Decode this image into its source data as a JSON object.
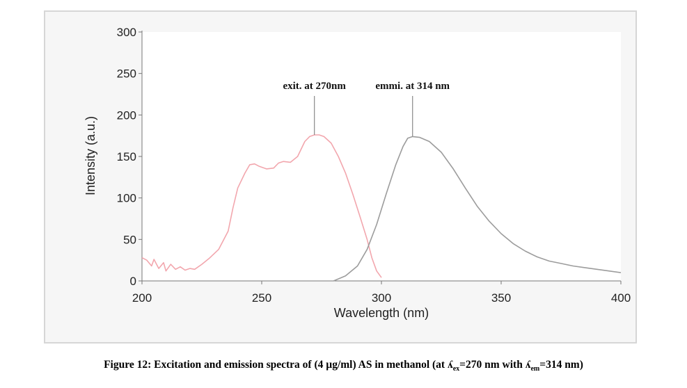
{
  "chart_data": {
    "type": "line",
    "xlabel": "Wavelength (nm)",
    "ylabel": "Intensity (a.u.)",
    "xlim": [
      200,
      400
    ],
    "ylim": [
      0,
      300
    ],
    "x_ticks": [
      200,
      250,
      300,
      350,
      400
    ],
    "y_ticks": [
      0,
      50,
      100,
      150,
      200,
      250,
      300
    ],
    "grid": false,
    "legend": "none",
    "series": [
      {
        "color": "#f2a6ad",
        "points": [
          [
            200,
            28
          ],
          [
            202,
            25
          ],
          [
            204,
            18
          ],
          [
            205,
            26
          ],
          [
            207,
            15
          ],
          [
            209,
            22
          ],
          [
            210,
            12
          ],
          [
            212,
            20
          ],
          [
            214,
            14
          ],
          [
            216,
            17
          ],
          [
            218,
            13
          ],
          [
            220,
            15
          ],
          [
            222,
            14
          ],
          [
            225,
            20
          ],
          [
            228,
            27
          ],
          [
            232,
            38
          ],
          [
            236,
            60
          ],
          [
            238,
            88
          ],
          [
            240,
            112
          ],
          [
            243,
            130
          ],
          [
            245,
            140
          ],
          [
            247,
            141
          ],
          [
            249,
            138
          ],
          [
            252,
            135
          ],
          [
            255,
            136
          ],
          [
            257,
            142
          ],
          [
            259,
            144
          ],
          [
            262,
            143
          ],
          [
            265,
            150
          ],
          [
            268,
            168
          ],
          [
            270,
            174
          ],
          [
            272,
            176
          ],
          [
            274,
            176
          ],
          [
            276,
            174
          ],
          [
            279,
            166
          ],
          [
            282,
            150
          ],
          [
            285,
            130
          ],
          [
            288,
            105
          ],
          [
            291,
            78
          ],
          [
            294,
            50
          ],
          [
            296,
            28
          ],
          [
            298,
            12
          ],
          [
            300,
            4
          ]
        ]
      },
      {
        "color": "#9c9c9c",
        "points": [
          [
            280,
            0
          ],
          [
            285,
            6
          ],
          [
            290,
            18
          ],
          [
            294,
            38
          ],
          [
            298,
            68
          ],
          [
            302,
            105
          ],
          [
            306,
            140
          ],
          [
            309,
            162
          ],
          [
            311,
            172
          ],
          [
            313,
            174
          ],
          [
            316,
            173
          ],
          [
            320,
            168
          ],
          [
            325,
            155
          ],
          [
            330,
            135
          ],
          [
            335,
            112
          ],
          [
            340,
            90
          ],
          [
            345,
            72
          ],
          [
            350,
            57
          ],
          [
            355,
            45
          ],
          [
            360,
            36
          ],
          [
            365,
            29
          ],
          [
            370,
            24
          ],
          [
            375,
            21
          ],
          [
            380,
            18
          ],
          [
            385,
            16
          ],
          [
            390,
            14
          ],
          [
            395,
            12
          ],
          [
            400,
            10
          ]
        ]
      }
    ],
    "annotations": [
      {
        "text": "exit. at 270nm",
        "x": 272,
        "y": 176
      },
      {
        "text": "emmi. at 314 nm",
        "x": 313,
        "y": 174
      }
    ]
  },
  "caption": {
    "prefix": "Figure 12: Excitation and emission spectra of (4 µg/ml) AS in methanol (at ʎ",
    "sub1": "ex",
    "mid": "=270 nm with ʎ",
    "sub2": "em",
    "suffix": "=314 nm)"
  }
}
